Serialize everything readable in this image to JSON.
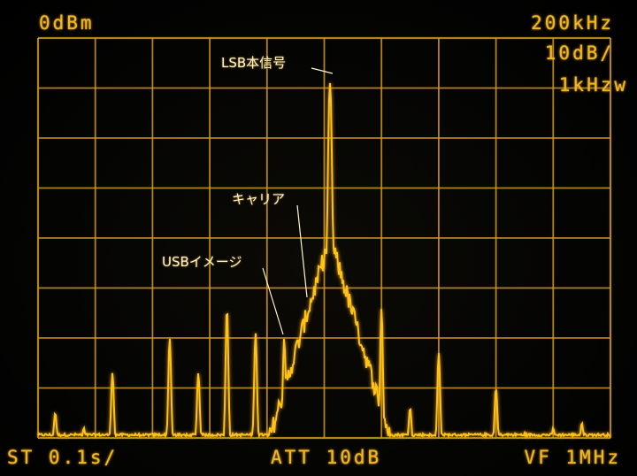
{
  "readouts": {
    "ref_level": "0dBm",
    "span": "200kHz",
    "scale": "10dB/",
    "rbw": "1kHzw",
    "sweep": "ST 0.1s/",
    "attenuation": "ATT 10dB",
    "video_filter": "VF 1MHz"
  },
  "annotations": {
    "lsb_signal": "LSB本信号",
    "carrier": "キャリア",
    "usb_image": "USBイメージ"
  },
  "colors": {
    "trace": "#ffc21a",
    "grid": "#d29a1c",
    "text": "#f0b820",
    "annotation": "#fff5d0"
  },
  "chart_data": {
    "type": "line",
    "grid": true,
    "x_divisions": 10,
    "y_divisions": 8,
    "peaks": [
      {
        "div": 0.3,
        "dB": -75
      },
      {
        "div": 0.8,
        "dB": -78
      },
      {
        "div": 1.3,
        "dB": -67
      },
      {
        "div": 2.3,
        "dB": -60
      },
      {
        "div": 2.8,
        "dB": -67
      },
      {
        "div": 3.3,
        "dB": -54
      },
      {
        "div": 3.8,
        "dB": -59
      },
      {
        "div": 4.3,
        "dB": -60
      },
      {
        "div": 4.8,
        "dB": -51
      },
      {
        "div": 5.1,
        "dB": -9
      },
      {
        "div": 5.6,
        "dB": -58
      },
      {
        "div": 6.0,
        "dB": -54
      },
      {
        "div": 6.5,
        "dB": -74
      },
      {
        "div": 7.0,
        "dB": -63
      },
      {
        "div": 8.0,
        "dB": -70
      },
      {
        "div": 8.5,
        "dB": -79
      },
      {
        "div": 9.0,
        "dB": -78
      },
      {
        "div": 9.5,
        "dB": -77
      }
    ],
    "noise_floor_dB": -82
  }
}
